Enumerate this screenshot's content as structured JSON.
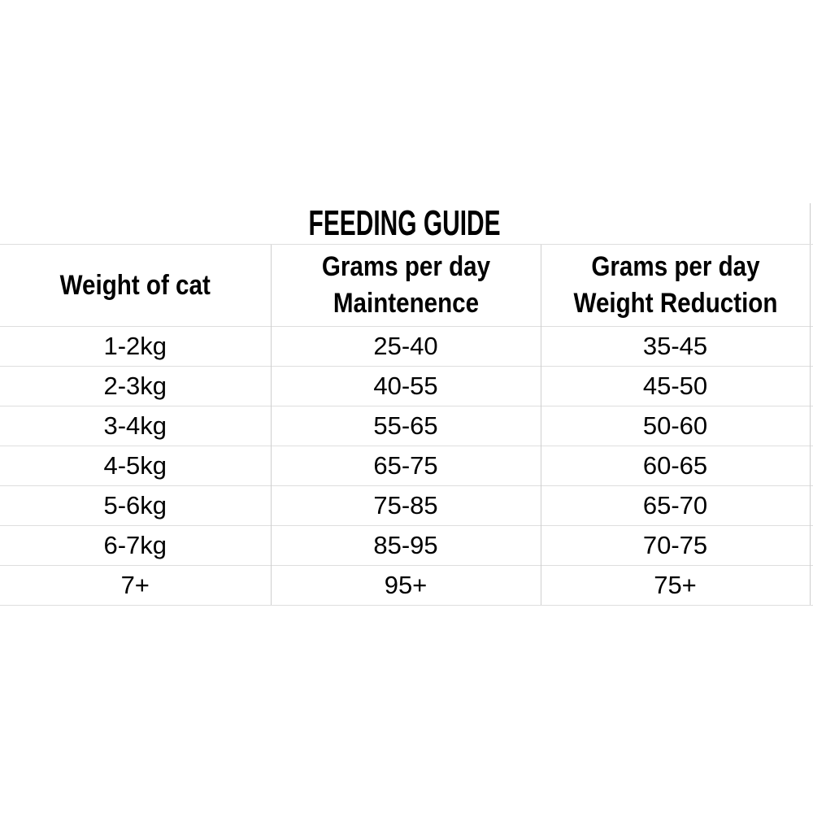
{
  "chart_data": {
    "type": "table",
    "title": "FEEDING GUIDE",
    "columns": [
      {
        "line1": "Weight of cat",
        "line2": ""
      },
      {
        "line1": "Grams per day",
        "line2": "Maintenence"
      },
      {
        "line1": "Grams per day",
        "line2": "Weight Reduction"
      }
    ],
    "rows": [
      [
        "1-2kg",
        "25-40",
        "35-45"
      ],
      [
        "2-3kg",
        "40-55",
        "45-50"
      ],
      [
        "3-4kg",
        "55-65",
        "50-60"
      ],
      [
        "4-5kg",
        "65-75",
        "60-65"
      ],
      [
        "5-6kg",
        "75-85",
        "65-70"
      ],
      [
        "6-7kg",
        "85-95",
        "70-75"
      ],
      [
        "7+",
        "95+",
        "75+"
      ]
    ],
    "layout": {
      "grid": "light horizontal and vertical rules",
      "header_style": "bold, two lines",
      "alignment": "center"
    }
  },
  "colors": {
    "background": "#ffffff",
    "text": "#000000",
    "grid_horizontal": "#dedede",
    "grid_vertical": "#c9c9c9"
  }
}
